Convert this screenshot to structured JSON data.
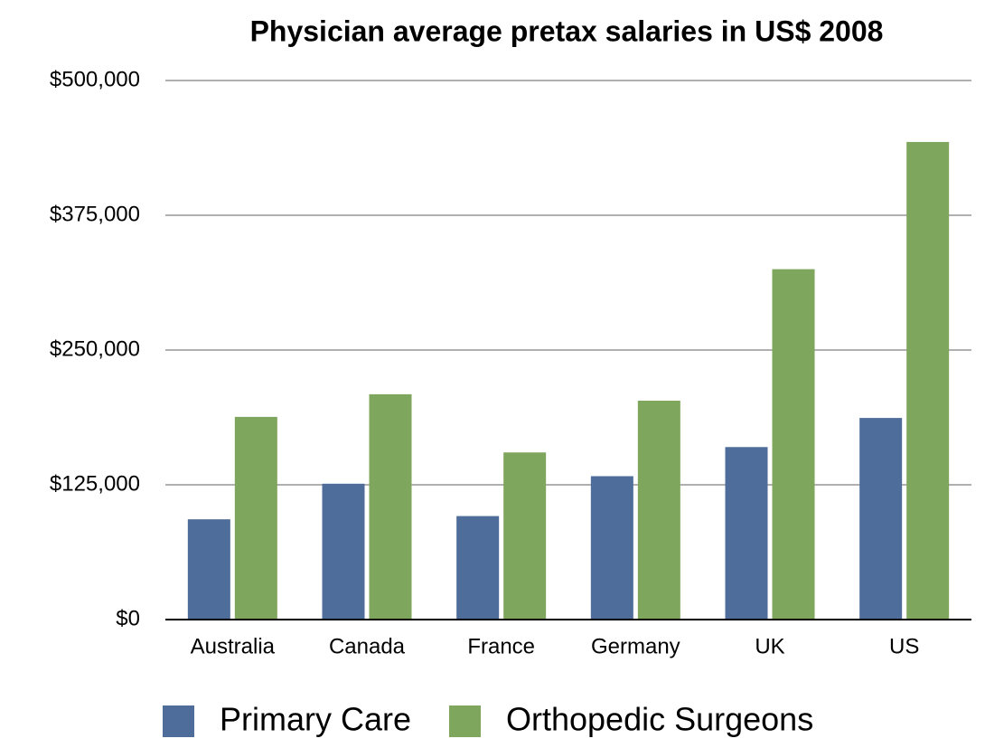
{
  "chart_data": {
    "type": "bar",
    "title": "Physician average pretax salaries in US$ 2008",
    "categories": [
      "Australia",
      "Canada",
      "France",
      "Germany",
      "UK",
      "US"
    ],
    "series": [
      {
        "name": "Primary Care",
        "color": "#4f6d9a",
        "values": [
          93000,
          126000,
          96000,
          133000,
          160000,
          187000
        ]
      },
      {
        "name": "Orthopedic Surgeons",
        "color": "#7fa65d",
        "values": [
          188000,
          209000,
          155000,
          203000,
          325000,
          443000
        ]
      }
    ],
    "ylim": [
      0,
      500000
    ],
    "yticks": [
      {
        "value": 0,
        "label": "$0"
      },
      {
        "value": 125000,
        "label": "$125,000"
      },
      {
        "value": 250000,
        "label": "$250,000"
      },
      {
        "value": 375000,
        "label": "$375,000"
      },
      {
        "value": 500000,
        "label": "$500,000"
      }
    ],
    "grid": true,
    "legend": "bottom"
  }
}
